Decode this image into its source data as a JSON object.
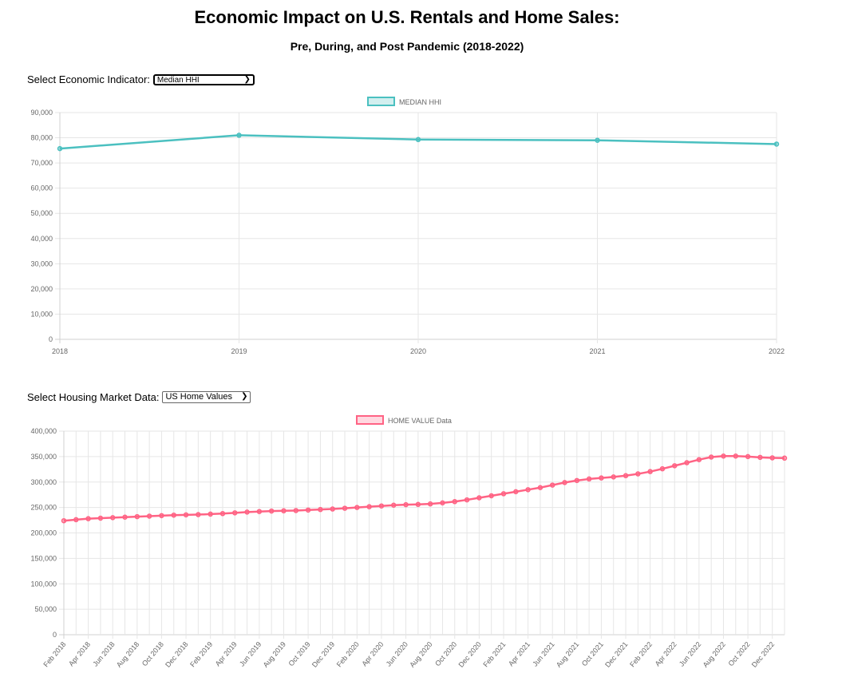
{
  "page": {
    "title": "Economic Impact on U.S. Rentals and Home Sales:",
    "subtitle": "Pre, During, and Post Pandemic (2018-2022)"
  },
  "controls": {
    "indicator_label": "Select Economic Indicator:",
    "indicator_value": "Median HHI",
    "housing_label": "Select Housing Market Data:",
    "housing_value": "US Home Values"
  },
  "colors": {
    "teal": "#4bc0c0",
    "pink": "#ff6384",
    "grid": "#e6e6e6",
    "tick": "#666666"
  },
  "chart_data": [
    {
      "type": "line",
      "legend": [
        "MEDIAN HHI"
      ],
      "legend_position": "top",
      "grid": true,
      "x": [
        "2018",
        "2019",
        "2020",
        "2021",
        "2022"
      ],
      "series": [
        {
          "name": "MEDIAN HHI",
          "values": [
            75700,
            81000,
            79300,
            79000,
            77500
          ]
        }
      ],
      "ylim": [
        0,
        90000
      ],
      "yticks": [
        "90,000",
        "80,000",
        "70,000",
        "60,000",
        "50,000",
        "40,000",
        "30,000",
        "20,000",
        "10,000",
        "0"
      ]
    },
    {
      "type": "line",
      "legend": [
        "HOME VALUE Data"
      ],
      "legend_position": "top",
      "grid": true,
      "x": [
        "Feb 2018",
        "Mar 2018",
        "Apr 2018",
        "May 2018",
        "Jun 2018",
        "Jul 2018",
        "Aug 2018",
        "Sep 2018",
        "Oct 2018",
        "Nov 2018",
        "Dec 2018",
        "Jan 2019",
        "Feb 2019",
        "Mar 2019",
        "Apr 2019",
        "May 2019",
        "Jun 2019",
        "Jul 2019",
        "Aug 2019",
        "Sep 2019",
        "Oct 2019",
        "Nov 2019",
        "Dec 2019",
        "Jan 2020",
        "Feb 2020",
        "Mar 2020",
        "Apr 2020",
        "May 2020",
        "Jun 2020",
        "Jul 2020",
        "Aug 2020",
        "Sep 2020",
        "Oct 2020",
        "Nov 2020",
        "Dec 2020",
        "Jan 2021",
        "Feb 2021",
        "Mar 2021",
        "Apr 2021",
        "May 2021",
        "Jun 2021",
        "Jul 2021",
        "Aug 2021",
        "Sep 2021",
        "Oct 2021",
        "Nov 2021",
        "Dec 2021",
        "Jan 2022",
        "Feb 2022",
        "Mar 2022",
        "Apr 2022",
        "May 2022",
        "Jun 2022",
        "Jul 2022",
        "Aug 2022",
        "Sep 2022",
        "Oct 2022",
        "Nov 2022",
        "Dec 2022",
        "Jan 2023"
      ],
      "xtick_labels": [
        "Feb 2018",
        "Apr 2018",
        "Jun 2018",
        "Aug 2018",
        "Oct 2018",
        "Dec 2018",
        "Feb 2019",
        "Apr 2019",
        "Jun 2019",
        "Aug 2019",
        "Oct 2019",
        "Dec 2019",
        "Feb 2020",
        "Apr 2020",
        "Jun 2020",
        "Aug 2020",
        "Oct 2020",
        "Dec 2020",
        "Feb 2021",
        "Apr 2021",
        "Jun 2021",
        "Aug 2021",
        "Oct 2021",
        "Dec 2021",
        "Feb 2022",
        "Apr 2022",
        "Jun 2022",
        "Aug 2022",
        "Oct 2022",
        "Dec 2022"
      ],
      "series": [
        {
          "name": "HOME VALUE Data",
          "values": [
            224000,
            226000,
            228000,
            229000,
            230000,
            231000,
            232000,
            233000,
            234000,
            235000,
            235500,
            236000,
            237000,
            238000,
            239500,
            241000,
            242000,
            243000,
            243500,
            244000,
            245000,
            246000,
            247000,
            248500,
            250000,
            251500,
            253000,
            254500,
            255500,
            256000,
            257000,
            259000,
            261500,
            265000,
            269000,
            273000,
            277000,
            281000,
            285000,
            289000,
            294000,
            299000,
            303000,
            306000,
            308000,
            310000,
            312500,
            316000,
            320500,
            326000,
            332000,
            338000,
            344000,
            349000,
            351000,
            351000,
            350000,
            348500,
            347500,
            347000
          ]
        }
      ],
      "ylim": [
        0,
        400000
      ],
      "yticks": [
        "400,000",
        "350,000",
        "300,000",
        "250,000",
        "200,000",
        "150,000",
        "100,000",
        "50,000",
        "0"
      ]
    }
  ]
}
